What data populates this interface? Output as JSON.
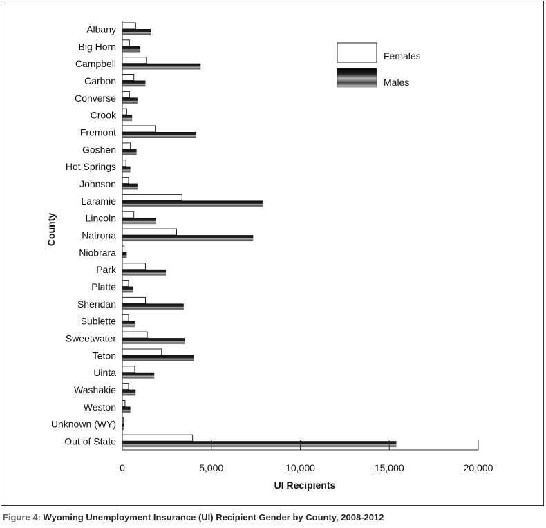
{
  "chart_data": {
    "type": "bar",
    "orientation": "horizontal",
    "ylabel": "County",
    "xlabel": "UI Recipients",
    "xlim": [
      0,
      20000
    ],
    "xticks": [
      0,
      5000,
      10000,
      15000,
      20000
    ],
    "xtick_labels": [
      "0",
      "5,000",
      "10,000",
      "15,000",
      "20,000"
    ],
    "grid": false,
    "legend_position": "top-right",
    "categories": [
      "Albany",
      "Big Horn",
      "Campbell",
      "Carbon",
      "Converse",
      "Crook",
      "Fremont",
      "Goshen",
      "Hot Springs",
      "Johnson",
      "Laramie",
      "Lincoln",
      "Natrona",
      "Niobrara",
      "Park",
      "Platte",
      "Sheridan",
      "Sublette",
      "Sweetwater",
      "Teton",
      "Uinta",
      "Washakie",
      "Weston",
      "Unknown (WY)",
      "Out of State"
    ],
    "series": [
      {
        "name": "Females",
        "color": "#ffffff",
        "values": [
          750,
          400,
          1350,
          650,
          400,
          250,
          1850,
          450,
          200,
          350,
          3350,
          650,
          3050,
          100,
          1300,
          350,
          1300,
          350,
          1400,
          2200,
          700,
          350,
          150,
          50,
          3950
        ]
      },
      {
        "name": "Males",
        "color": "#555555",
        "values": [
          1600,
          1000,
          4400,
          1300,
          850,
          550,
          4150,
          800,
          450,
          850,
          7900,
          1900,
          7350,
          250,
          2450,
          600,
          3450,
          700,
          3500,
          4000,
          1800,
          750,
          450,
          100,
          15400
        ]
      }
    ]
  },
  "caption": {
    "figure_label": "Figure 4:",
    "text": "Wyoming Unemployment Insurance (UI) Recipient Gender by County, 2008-2012"
  }
}
